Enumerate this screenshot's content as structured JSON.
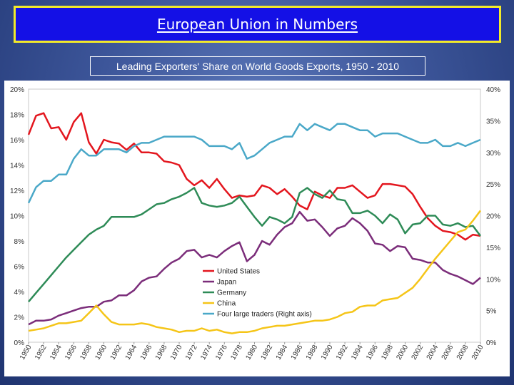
{
  "header": {
    "title": "European Union in Numbers"
  },
  "subtitle": "Leading Exporters' Share on World Goods Exports, 1950 - 2010",
  "chart_data": {
    "type": "line",
    "x": [
      1950,
      1951,
      1952,
      1953,
      1954,
      1955,
      1956,
      1957,
      1958,
      1959,
      1960,
      1961,
      1962,
      1963,
      1964,
      1965,
      1966,
      1967,
      1968,
      1969,
      1970,
      1971,
      1972,
      1973,
      1974,
      1975,
      1976,
      1977,
      1978,
      1979,
      1980,
      1981,
      1982,
      1983,
      1984,
      1985,
      1986,
      1987,
      1988,
      1989,
      1990,
      1991,
      1992,
      1993,
      1994,
      1995,
      1996,
      1997,
      1998,
      1999,
      2000,
      2001,
      2002,
      2003,
      2004,
      2005,
      2006,
      2007,
      2008,
      2009,
      2010
    ],
    "x_tick_labels": [
      "1950",
      "1952",
      "1954",
      "1956",
      "1958",
      "1960",
      "1962",
      "1964",
      "1966",
      "1968",
      "1970",
      "1972",
      "1974",
      "1976",
      "1978",
      "1980",
      "1982",
      "1984",
      "1986",
      "1988",
      "1990",
      "1992",
      "1994",
      "1996",
      "1998",
      "2000",
      "2002",
      "2004",
      "2006",
      "2008",
      "2010"
    ],
    "y_left": {
      "ticks": [
        "0%",
        "2%",
        "4%",
        "6%",
        "8%",
        "10%",
        "12%",
        "14%",
        "16%",
        "18%",
        "20%"
      ],
      "range": [
        0,
        20
      ]
    },
    "y_right": {
      "ticks": [
        "0%",
        "5%",
        "10%",
        "15%",
        "20%",
        "25%",
        "30%",
        "35%",
        "40%"
      ],
      "range": [
        0,
        40
      ]
    },
    "grid": false,
    "legend": "bottom-center",
    "series": [
      {
        "name": "United States",
        "axis": "left",
        "color": "#e3161e",
        "values": [
          16.4,
          17.9,
          18.1,
          16.9,
          17.0,
          16.0,
          17.4,
          18.1,
          15.8,
          14.9,
          16.0,
          15.8,
          15.7,
          15.2,
          15.7,
          15.0,
          15.0,
          14.9,
          14.3,
          14.2,
          14.0,
          12.9,
          12.4,
          12.8,
          12.2,
          12.9,
          12.1,
          11.4,
          11.6,
          11.5,
          11.6,
          12.4,
          12.2,
          11.7,
          12.1,
          11.5,
          10.8,
          10.5,
          11.9,
          11.6,
          11.4,
          12.2,
          12.2,
          12.4,
          11.9,
          11.4,
          11.6,
          12.5,
          12.5,
          12.4,
          12.3,
          11.7,
          10.7,
          9.8,
          9.2,
          8.8,
          8.7,
          8.5,
          8.1,
          8.5,
          8.4
        ]
      },
      {
        "name": "Japan",
        "axis": "left",
        "color": "#7b2d7a",
        "values": [
          1.4,
          1.7,
          1.7,
          1.8,
          2.1,
          2.3,
          2.5,
          2.7,
          2.8,
          2.8,
          3.2,
          3.3,
          3.7,
          3.7,
          4.1,
          4.8,
          5.1,
          5.2,
          5.8,
          6.3,
          6.6,
          7.2,
          7.3,
          6.7,
          6.9,
          6.7,
          7.2,
          7.6,
          7.9,
          6.4,
          6.9,
          8.0,
          7.7,
          8.5,
          9.1,
          9.4,
          10.3,
          9.6,
          9.7,
          9.1,
          8.4,
          9.0,
          9.2,
          9.8,
          9.4,
          8.8,
          7.8,
          7.7,
          7.2,
          7.6,
          7.5,
          6.6,
          6.5,
          6.3,
          6.3,
          5.7,
          5.4,
          5.2,
          4.9,
          4.6,
          5.1
        ]
      },
      {
        "name": "Germany",
        "axis": "left",
        "color": "#2e8b57",
        "values": [
          3.2,
          3.9,
          4.6,
          5.3,
          6.0,
          6.7,
          7.3,
          7.9,
          8.5,
          8.9,
          9.2,
          9.9,
          9.9,
          9.9,
          9.9,
          10.1,
          10.5,
          10.9,
          11.0,
          11.3,
          11.5,
          11.8,
          12.2,
          11.0,
          10.8,
          10.7,
          10.8,
          11.0,
          11.5,
          10.7,
          9.9,
          9.2,
          9.9,
          9.7,
          9.4,
          9.9,
          11.8,
          12.2,
          11.7,
          11.4,
          12.0,
          11.3,
          11.2,
          10.2,
          10.2,
          10.4,
          10.0,
          9.4,
          10.1,
          9.7,
          8.6,
          9.3,
          9.4,
          10.0,
          10.0,
          9.3,
          9.2,
          9.4,
          9.1,
          9.2,
          8.4
        ]
      },
      {
        "name": "China",
        "axis": "left",
        "color": "#f5c518",
        "values": [
          0.9,
          1.0,
          1.1,
          1.3,
          1.5,
          1.5,
          1.6,
          1.7,
          2.3,
          2.9,
          2.2,
          1.6,
          1.4,
          1.4,
          1.4,
          1.5,
          1.4,
          1.2,
          1.1,
          1.0,
          0.8,
          0.9,
          0.9,
          1.1,
          0.9,
          1.0,
          0.8,
          0.7,
          0.8,
          0.8,
          0.9,
          1.1,
          1.2,
          1.3,
          1.3,
          1.4,
          1.5,
          1.6,
          1.7,
          1.7,
          1.8,
          2.0,
          2.3,
          2.4,
          2.8,
          2.9,
          2.9,
          3.3,
          3.4,
          3.5,
          3.9,
          4.3,
          5.0,
          5.8,
          6.6,
          7.3,
          8.0,
          8.7,
          8.9,
          9.6,
          10.4
        ]
      },
      {
        "name": "Four large traders (Right axis)",
        "axis": "right",
        "color": "#4aa8c8",
        "values": [
          22.0,
          24.5,
          25.5,
          25.5,
          26.5,
          26.5,
          29.0,
          30.5,
          29.5,
          29.5,
          30.5,
          30.5,
          30.5,
          30.0,
          31.0,
          31.5,
          31.5,
          32.0,
          32.5,
          32.5,
          32.5,
          32.5,
          32.5,
          32.0,
          31.0,
          31.0,
          31.0,
          30.5,
          31.5,
          29.0,
          29.5,
          30.5,
          31.5,
          32.0,
          32.5,
          32.5,
          34.5,
          33.5,
          34.5,
          34.0,
          33.5,
          34.5,
          34.5,
          34.0,
          33.5,
          33.5,
          32.5,
          33.0,
          33.0,
          33.0,
          32.5,
          32.0,
          31.5,
          31.5,
          32.0,
          31.0,
          31.0,
          31.5,
          31.0,
          31.5,
          32.0
        ]
      }
    ]
  }
}
